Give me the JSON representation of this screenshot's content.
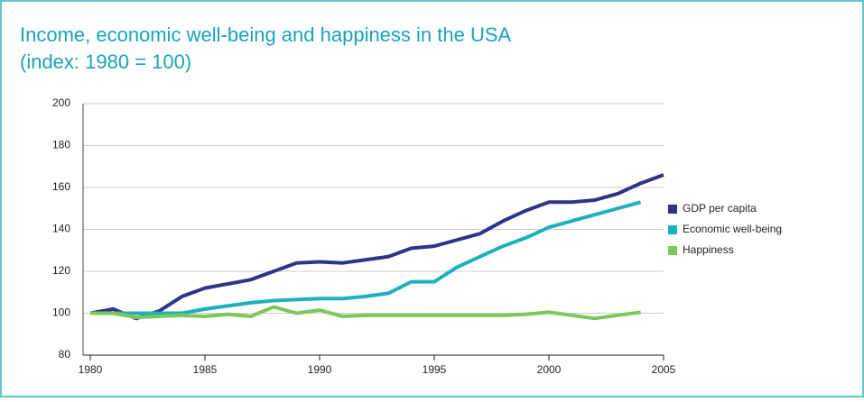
{
  "chart_data": {
    "type": "line",
    "title": "Income, economic well-being and happiness in the USA",
    "subtitle": "(index: 1980 = 100)",
    "x": [
      1980,
      1981,
      1982,
      1983,
      1984,
      1985,
      1986,
      1987,
      1988,
      1989,
      1990,
      1991,
      1992,
      1993,
      1994,
      1995,
      1996,
      1997,
      1998,
      1999,
      2000,
      2001,
      2002,
      2003,
      2004,
      2005
    ],
    "series": [
      {
        "name": "GDP per capita",
        "color": "#2e3488",
        "values": [
          100,
          102,
          97.5,
          101,
          108,
          112,
          114,
          116,
          120,
          124,
          124.5,
          124,
          125.5,
          127,
          131,
          132,
          135,
          138,
          144,
          149,
          153,
          153,
          154,
          157,
          162,
          166
        ]
      },
      {
        "name": "Economic well-being",
        "color": "#1eb0be",
        "values": [
          100,
          100,
          100,
          100,
          100,
          102,
          103.5,
          105,
          106,
          106.5,
          107,
          107,
          108,
          109.5,
          115,
          115,
          122,
          127,
          132,
          136,
          141,
          144,
          147,
          150,
          153,
          null
        ]
      },
      {
        "name": "Happiness",
        "color": "#7dc85a",
        "values": [
          100,
          100,
          98,
          98.5,
          99,
          98.5,
          99.5,
          98.5,
          103,
          100,
          101.5,
          98.5,
          99,
          99,
          99,
          99,
          99,
          99,
          99,
          99.5,
          100.5,
          99,
          97.5,
          99,
          100.5,
          null
        ]
      }
    ],
    "xlim": [
      1980,
      2005
    ],
    "xticks": [
      1980,
      1985,
      1990,
      1995,
      2000,
      2005
    ],
    "ylim": [
      80,
      200
    ],
    "yticks": [
      80,
      100,
      120,
      140,
      160,
      180,
      200
    ],
    "grid": true,
    "legend": "right"
  }
}
